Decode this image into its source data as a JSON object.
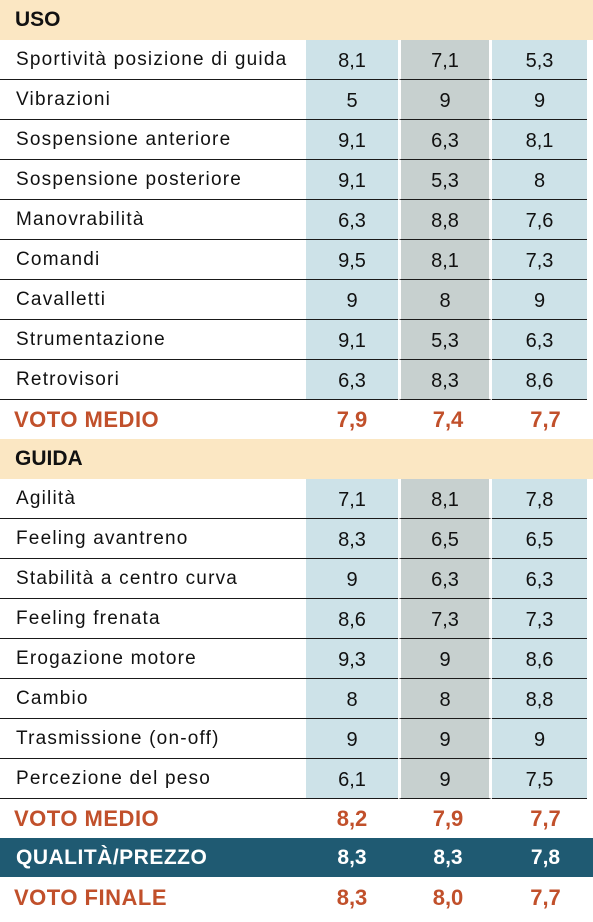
{
  "sections": [
    {
      "title": "USO",
      "rows": [
        {
          "label": "Sportività posizione di guida",
          "values": [
            "8,1",
            "7,1",
            "5,3"
          ]
        },
        {
          "label": "Vibrazioni",
          "values": [
            "5",
            "9",
            "9"
          ]
        },
        {
          "label": "Sospensione anteriore",
          "values": [
            "9,1",
            "6,3",
            "8,1"
          ]
        },
        {
          "label": "Sospensione posteriore",
          "values": [
            "9,1",
            "5,3",
            "8"
          ]
        },
        {
          "label": "Manovrabilità",
          "values": [
            "6,3",
            "8,8",
            "7,6"
          ]
        },
        {
          "label": "Comandi",
          "values": [
            "9,5",
            "8,1",
            "7,3"
          ]
        },
        {
          "label": "Cavalletti",
          "values": [
            "9",
            "8",
            "9"
          ]
        },
        {
          "label": "Strumentazione",
          "values": [
            "9,1",
            "5,3",
            "6,3"
          ]
        },
        {
          "label": "Retrovisori",
          "values": [
            "6,3",
            "8,3",
            "8,6"
          ]
        }
      ],
      "average": {
        "label": "VOTO MEDIO",
        "values": [
          "7,9",
          "7,4",
          "7,7"
        ]
      }
    },
    {
      "title": "GUIDA",
      "rows": [
        {
          "label": "Agilità",
          "values": [
            "7,1",
            "8,1",
            "7,8"
          ]
        },
        {
          "label": "Feeling avantreno",
          "values": [
            "8,3",
            "6,5",
            "6,5"
          ]
        },
        {
          "label": "Stabilità a centro curva",
          "values": [
            "9",
            "6,3",
            "6,3"
          ]
        },
        {
          "label": "Feeling frenata",
          "values": [
            "8,6",
            "7,3",
            "7,3"
          ]
        },
        {
          "label": "Erogazione motore",
          "values": [
            "9,3",
            "9",
            "8,6"
          ]
        },
        {
          "label": "Cambio",
          "values": [
            "8",
            "8",
            "8,8"
          ]
        },
        {
          "label": "Trasmissione (on-off)",
          "values": [
            "9",
            "9",
            "9"
          ]
        },
        {
          "label": "Percezione del peso",
          "values": [
            "6,1",
            "9",
            "7,5"
          ]
        }
      ],
      "average": {
        "label": "VOTO MEDIO",
        "values": [
          "8,2",
          "7,9",
          "7,7"
        ]
      }
    }
  ],
  "quality_price": {
    "label": "QUALITÀ/PREZZO",
    "values": [
      "8,3",
      "8,3",
      "7,8"
    ]
  },
  "final": {
    "label": "VOTO FINALE",
    "values": [
      "8,3",
      "8,0",
      "7,7"
    ]
  },
  "colors": {
    "header_bg": "#fbe7c3",
    "col_blue": "#cde2e8",
    "col_grey": "#c7d0cf",
    "accent_orange": "#c1502b",
    "qp_bg": "#1f5a72"
  }
}
